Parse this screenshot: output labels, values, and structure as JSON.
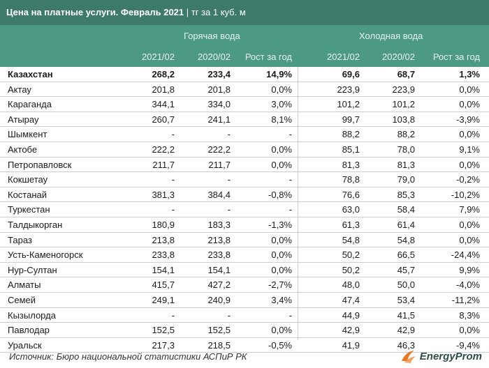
{
  "header": {
    "title": "Цена на платные услуги. Февраль 2021",
    "unit": "| тг за 1 куб. м"
  },
  "groups": {
    "hot": "Горячая вода",
    "cold": "Холодная вода"
  },
  "columns": {
    "hot_2021": "2021/02",
    "hot_2020": "2020/02",
    "hot_growth": "Рост за год",
    "cold_2021": "2021/02",
    "cold_2020": "2020/02",
    "cold_growth": "Рост за год"
  },
  "rows": [
    {
      "city": "Казахстан",
      "h21": "268,2",
      "h20": "233,4",
      "hg": "14,9%",
      "c21": "69,6",
      "c20": "68,7",
      "cg": "1,3%"
    },
    {
      "city": "Актау",
      "h21": "201,8",
      "h20": "201,8",
      "hg": "0,0%",
      "c21": "223,9",
      "c20": "223,9",
      "cg": "0,0%"
    },
    {
      "city": "Караганда",
      "h21": "344,1",
      "h20": "334,0",
      "hg": "3,0%",
      "c21": "101,2",
      "c20": "101,2",
      "cg": "0,0%"
    },
    {
      "city": "Атырау",
      "h21": "260,7",
      "h20": "241,1",
      "hg": "8,1%",
      "c21": "99,7",
      "c20": "103,8",
      "cg": "-3,9%"
    },
    {
      "city": "Шымкент",
      "h21": "-",
      "h20": "-",
      "hg": "-",
      "c21": "88,2",
      "c20": "88,2",
      "cg": "0,0%"
    },
    {
      "city": "Актобе",
      "h21": "222,2",
      "h20": "222,2",
      "hg": "0,0%",
      "c21": "85,1",
      "c20": "78,0",
      "cg": "9,1%"
    },
    {
      "city": "Петропавловск",
      "h21": "211,7",
      "h20": "211,7",
      "hg": "0,0%",
      "c21": "81,3",
      "c20": "81,3",
      "cg": "0,0%"
    },
    {
      "city": "Кокшетау",
      "h21": "-",
      "h20": "-",
      "hg": "-",
      "c21": "78,8",
      "c20": "79,0",
      "cg": "-0,2%"
    },
    {
      "city": "Костанай",
      "h21": "381,3",
      "h20": "384,4",
      "hg": "-0,8%",
      "c21": "76,6",
      "c20": "85,3",
      "cg": "-10,2%"
    },
    {
      "city": "Туркестан",
      "h21": "-",
      "h20": "-",
      "hg": "-",
      "c21": "63,0",
      "c20": "58,4",
      "cg": "7,9%"
    },
    {
      "city": "Талдыкорган",
      "h21": "180,9",
      "h20": "183,3",
      "hg": "-1,3%",
      "c21": "61,3",
      "c20": "61,4",
      "cg": "0,0%"
    },
    {
      "city": "Тараз",
      "h21": "213,8",
      "h20": "213,8",
      "hg": "0,0%",
      "c21": "54,8",
      "c20": "54,8",
      "cg": "0,0%"
    },
    {
      "city": "Усть-Каменогорск",
      "h21": "233,8",
      "h20": "233,8",
      "hg": "0,0%",
      "c21": "50,2",
      "c20": "66,5",
      "cg": "-24,4%"
    },
    {
      "city": "Нур-Султан",
      "h21": "154,1",
      "h20": "154,1",
      "hg": "0,0%",
      "c21": "50,2",
      "c20": "45,7",
      "cg": "9,9%"
    },
    {
      "city": "Алматы",
      "h21": "415,7",
      "h20": "427,2",
      "hg": "-2,7%",
      "c21": "48,0",
      "c20": "50,0",
      "cg": "-4,0%"
    },
    {
      "city": "Семей",
      "h21": "249,1",
      "h20": "240,9",
      "hg": "3,4%",
      "c21": "47,4",
      "c20": "53,4",
      "cg": "-11,2%"
    },
    {
      "city": "Кызылорда",
      "h21": "-",
      "h20": "-",
      "hg": "-",
      "c21": "44,9",
      "c20": "41,5",
      "cg": "8,3%"
    },
    {
      "city": "Павлодар",
      "h21": "152,5",
      "h20": "152,5",
      "hg": "0,0%",
      "c21": "42,9",
      "c20": "42,9",
      "cg": "0,0%"
    },
    {
      "city": "Уральск",
      "h21": "217,3",
      "h20": "218,5",
      "hg": "-0,5%",
      "c21": "41,9",
      "c20": "46,3",
      "cg": "-9,4%"
    }
  ],
  "footer": {
    "source": "Источник: Бюро национальной статистики АСПиР РК",
    "logo_text": "EnergyProm",
    "logo_color": "#e87722"
  }
}
